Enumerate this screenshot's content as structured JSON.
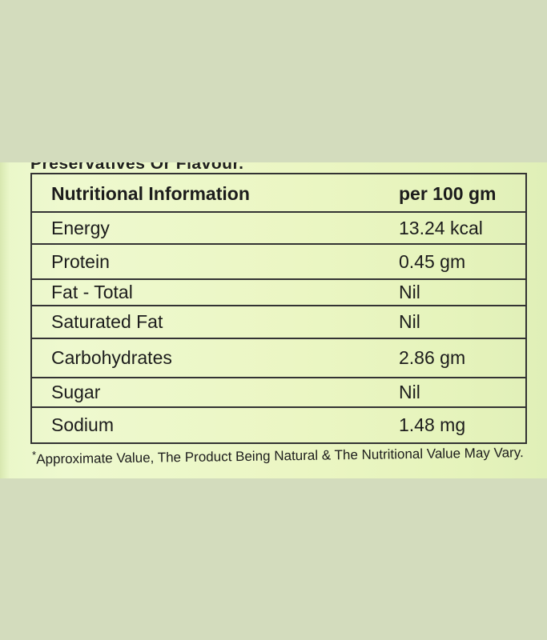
{
  "photo": {
    "background_color": "#d3dcbd",
    "label_color": "#eaf6c6"
  },
  "cut_off_line": "Preservatives Or Flavour.",
  "table": {
    "header": {
      "left": "Nutritional Information",
      "right": "per 100 gm"
    },
    "rows": [
      {
        "nutrient": "Energy",
        "value": "13.24 kcal"
      },
      {
        "nutrient": "Protein",
        "value": "0.45 gm"
      },
      {
        "nutrient": "Fat - Total",
        "value": "Nil"
      },
      {
        "nutrient": "Saturated Fat",
        "value": "Nil"
      },
      {
        "nutrient": "Carbohydrates",
        "value": "2.86 gm"
      },
      {
        "nutrient": "Sugar",
        "value": "Nil"
      },
      {
        "nutrient": "Sodium",
        "value": "1.48 mg"
      }
    ]
  },
  "footnote": {
    "star": "*",
    "text": "Approximate Value, The Product Being Natural & The Nutritional Value May Vary."
  }
}
